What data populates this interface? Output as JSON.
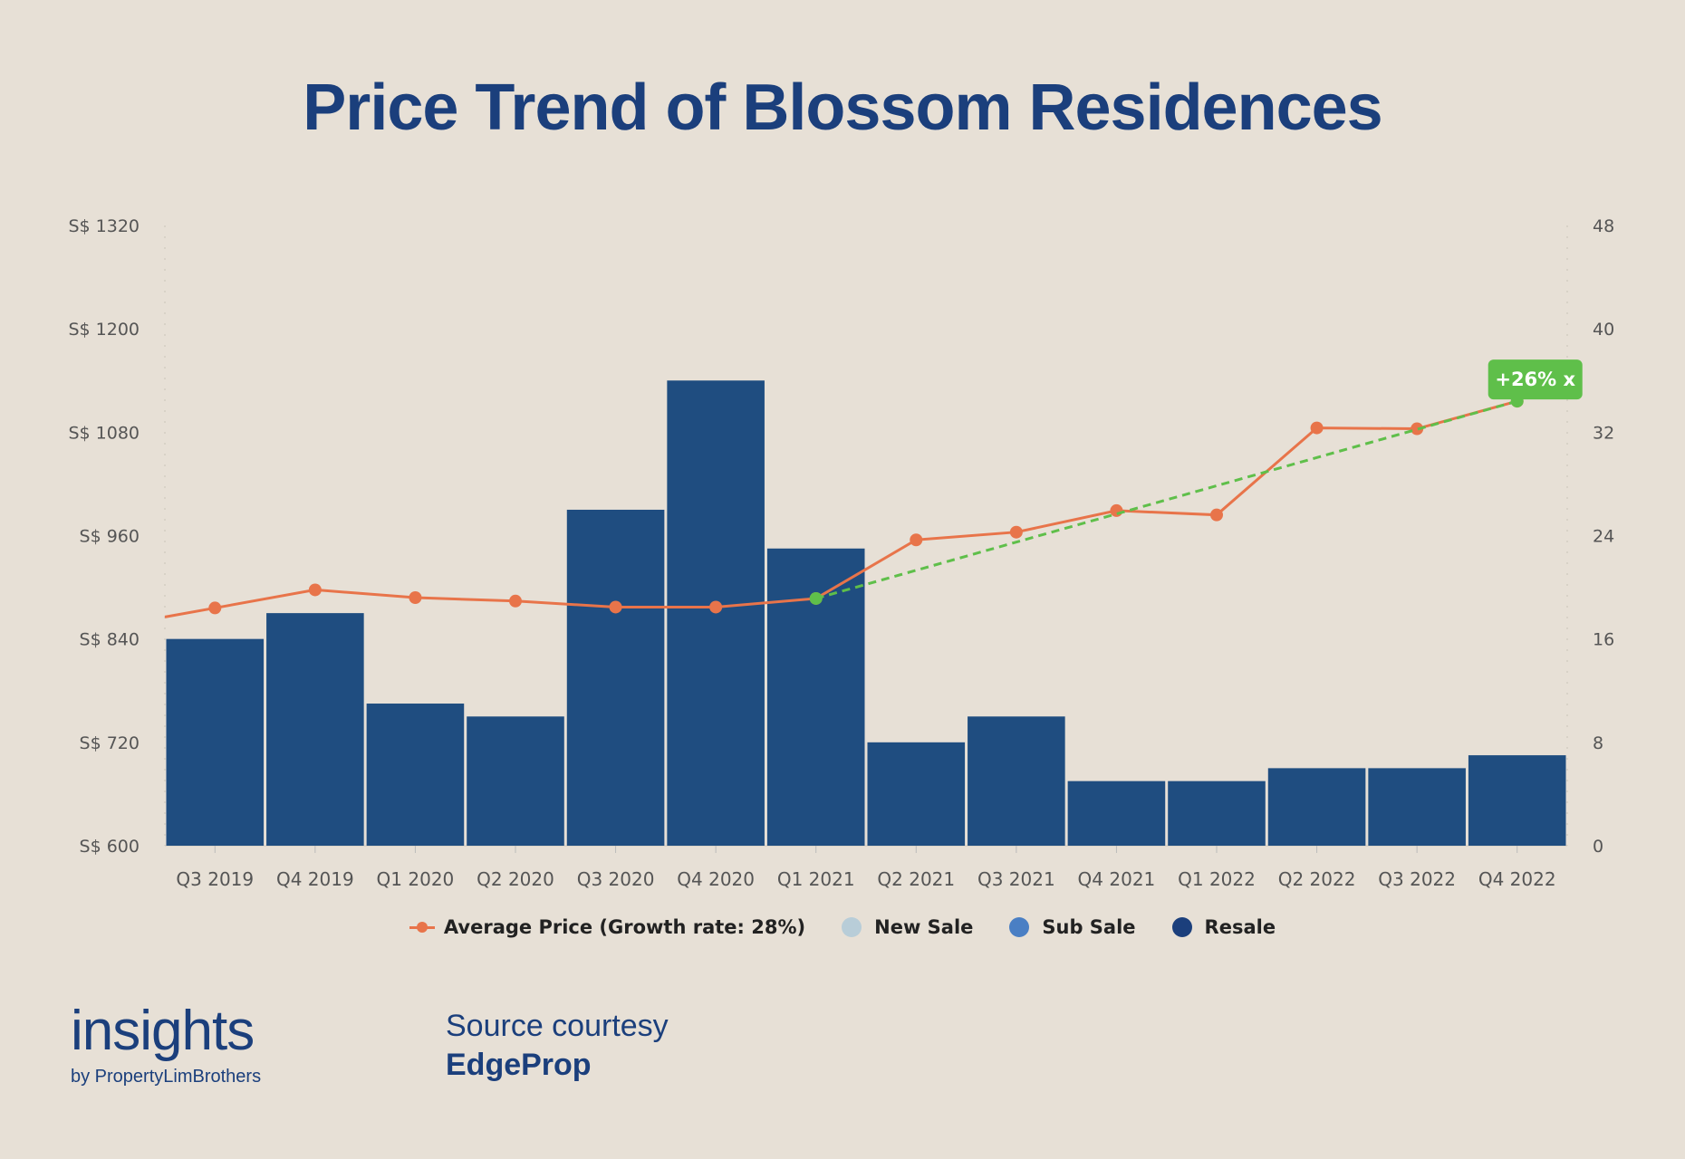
{
  "title": "Price Trend of Blossom Residences",
  "chart_data": {
    "type": "bar",
    "categories": [
      "Q3 2019",
      "Q4 2019",
      "Q1 2020",
      "Q2 2020",
      "Q3 2020",
      "Q4 2020",
      "Q1 2021",
      "Q2 2021",
      "Q3 2021",
      "Q4 2021",
      "Q1 2022",
      "Q2 2022",
      "Q3 2022",
      "Q4 2022"
    ],
    "left_axis": {
      "ticks": [
        "S$ 1320",
        "S$ 1200",
        "S$ 1080",
        "S$ 960",
        "S$ 840",
        "S$ 720",
        "S$ 600"
      ],
      "range": [
        600,
        1320
      ]
    },
    "right_axis": {
      "ticks": [
        "48",
        "40",
        "32",
        "24",
        "16",
        "8",
        "0"
      ],
      "range": [
        0,
        48
      ]
    },
    "series": [
      {
        "name": "Resale",
        "type": "bar",
        "axis": "right",
        "color": "#1f4d80",
        "values": [
          16,
          18,
          11,
          10,
          26,
          36,
          23,
          8,
          10,
          5,
          5,
          6,
          6,
          7
        ]
      },
      {
        "name": "Average Price (Growth rate: 28%)",
        "type": "line",
        "axis": "left",
        "color": "#e8744a",
        "values": [
          876,
          897,
          888,
          884,
          877,
          877,
          887,
          955,
          964,
          989,
          984,
          1085,
          1084,
          1116
        ]
      }
    ],
    "trend": {
      "color": "#5fbf4a",
      "from_index": 6,
      "to_index": 13,
      "badge": "+26% x"
    },
    "legend": [
      {
        "label": "Average Price (Growth rate: 28%)",
        "kind": "line",
        "color": "#e8744a"
      },
      {
        "label": "New Sale",
        "kind": "dot",
        "color": "#b8cdd8"
      },
      {
        "label": "Sub Sale",
        "kind": "dot",
        "color": "#4a7fc4"
      },
      {
        "label": "Resale",
        "kind": "dot",
        "color": "#1b3f7c"
      }
    ],
    "legend_position": "bottom"
  },
  "branding": {
    "logo_word": "insights",
    "logo_sub": "by PropertyLimBrothers"
  },
  "source": {
    "line1": "Source courtesy",
    "line2": "EdgeProp"
  }
}
